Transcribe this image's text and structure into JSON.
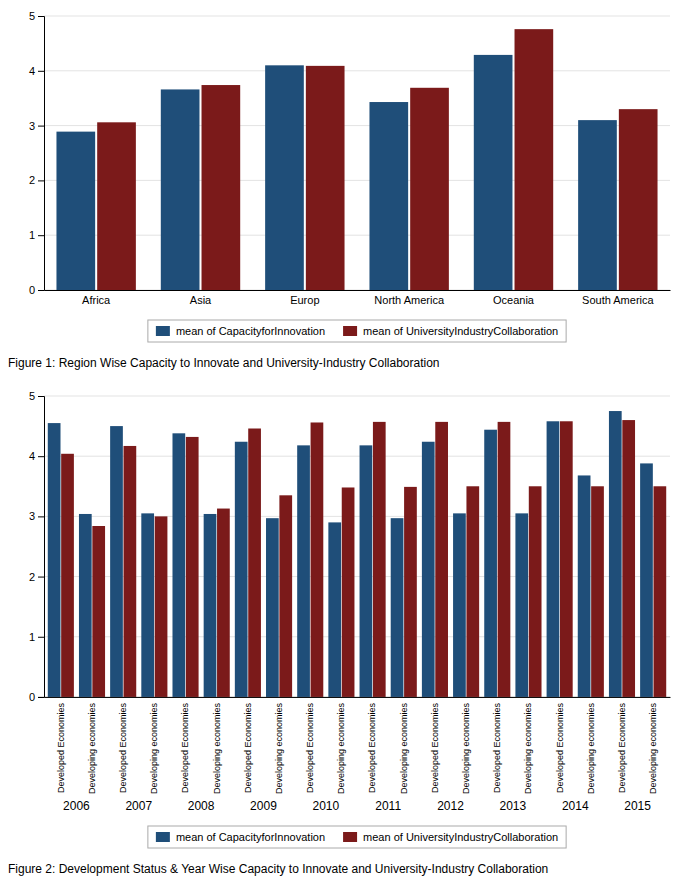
{
  "chart_data": [
    {
      "type": "bar",
      "title": "Figure 1: Region Wise Capacity to Innovate and University-Industry Collaboration",
      "categories": [
        "Africa",
        "Asia",
        "Europ",
        "North America",
        "Oceania",
        "South America"
      ],
      "series": [
        {
          "name": "mean of CapacityforInnovation",
          "color": "#1F4E79",
          "values": [
            2.89,
            3.66,
            4.1,
            3.43,
            4.29,
            3.1
          ]
        },
        {
          "name": "mean of UniversityIndustryCollaboration",
          "color": "#7B1A1A",
          "values": [
            3.06,
            3.74,
            4.09,
            3.69,
            4.76,
            3.3
          ]
        }
      ],
      "ylim": [
        0,
        5
      ],
      "yticks": [
        0,
        1,
        2,
        3,
        4,
        5
      ],
      "grid": true,
      "legend": "bottom"
    },
    {
      "type": "bar",
      "title": "Figure 2: Development Status & Year Wise Capacity to Innovate and University-Industry Collaboration",
      "categories": [
        "Developed Economies",
        "Developing economies",
        "Developed Economies",
        "Developing economies",
        "Developed Economies",
        "Developing economies",
        "Developed Economies",
        "Developing economies",
        "Developed Economies",
        "Developing economies",
        "Developed Economies",
        "Developing economies",
        "Developed Economies",
        "Developing economies",
        "Developed Economies",
        "Developing economies",
        "Developed Economies",
        "Developing economies",
        "Developed Economies",
        "Developing economies"
      ],
      "groups": [
        2006,
        2007,
        2008,
        2009,
        2010,
        2011,
        2012,
        2013,
        2014,
        2015
      ],
      "series": [
        {
          "name": "mean of CapacityforInnovation",
          "color": "#1F4E79",
          "values": [
            4.55,
            3.04,
            4.5,
            3.05,
            4.38,
            3.04,
            4.24,
            2.97,
            4.18,
            2.9,
            4.18,
            2.97,
            4.24,
            3.05,
            4.44,
            3.05,
            4.58,
            3.68,
            4.75,
            3.88
          ]
        },
        {
          "name": "mean of UniversityIndustryCollaboration",
          "color": "#7B1A1A",
          "values": [
            4.04,
            2.84,
            4.17,
            3.0,
            4.32,
            3.13,
            4.46,
            3.35,
            4.56,
            3.48,
            4.57,
            3.49,
            4.57,
            3.5,
            4.57,
            3.5,
            4.58,
            3.5,
            4.6,
            3.5
          ]
        }
      ],
      "ylim": [
        0,
        5
      ],
      "yticks": [
        0,
        1,
        2,
        3,
        4,
        5
      ],
      "grid": true,
      "legend": "bottom"
    }
  ]
}
